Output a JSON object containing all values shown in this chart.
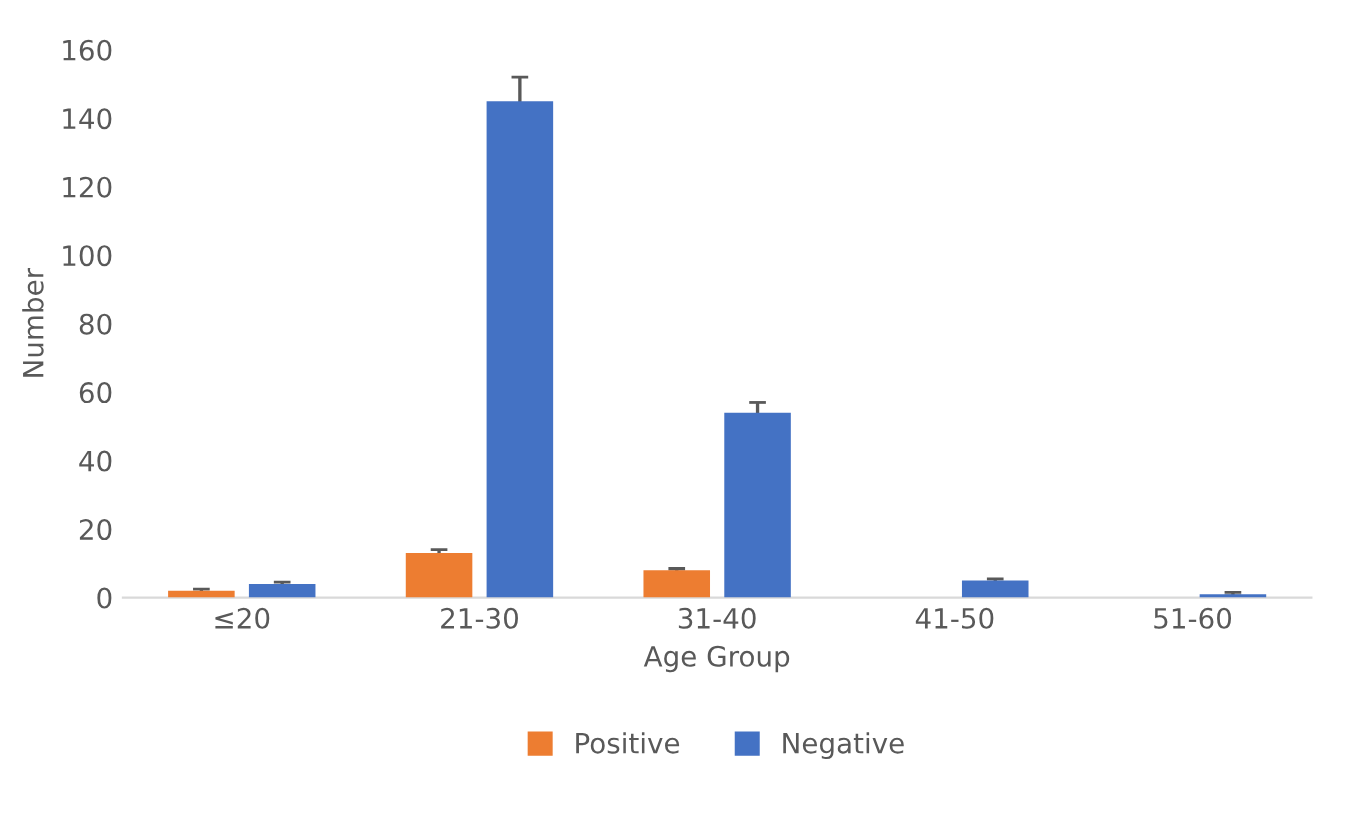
{
  "chart_data": {
    "type": "bar",
    "xlabel": "Age Group",
    "ylabel": "Number",
    "categories": [
      "≤20",
      "21-30",
      "31-40",
      "41-50",
      "51-60"
    ],
    "series": [
      {
        "name": "Positive",
        "color": "#ed7d31",
        "values": [
          2,
          13,
          8,
          0,
          0
        ],
        "errors": [
          0.5,
          1,
          0.5,
          null,
          null
        ]
      },
      {
        "name": "Negative",
        "color": "#4472c4",
        "values": [
          4,
          145,
          54,
          5,
          1
        ],
        "errors": [
          0.5,
          7,
          3,
          0.5,
          0.5
        ]
      }
    ],
    "ylim": [
      0,
      160
    ],
    "yticks": [
      0,
      20,
      40,
      60,
      80,
      100,
      120,
      140,
      160
    ],
    "grid": false,
    "legend": "bottom"
  }
}
